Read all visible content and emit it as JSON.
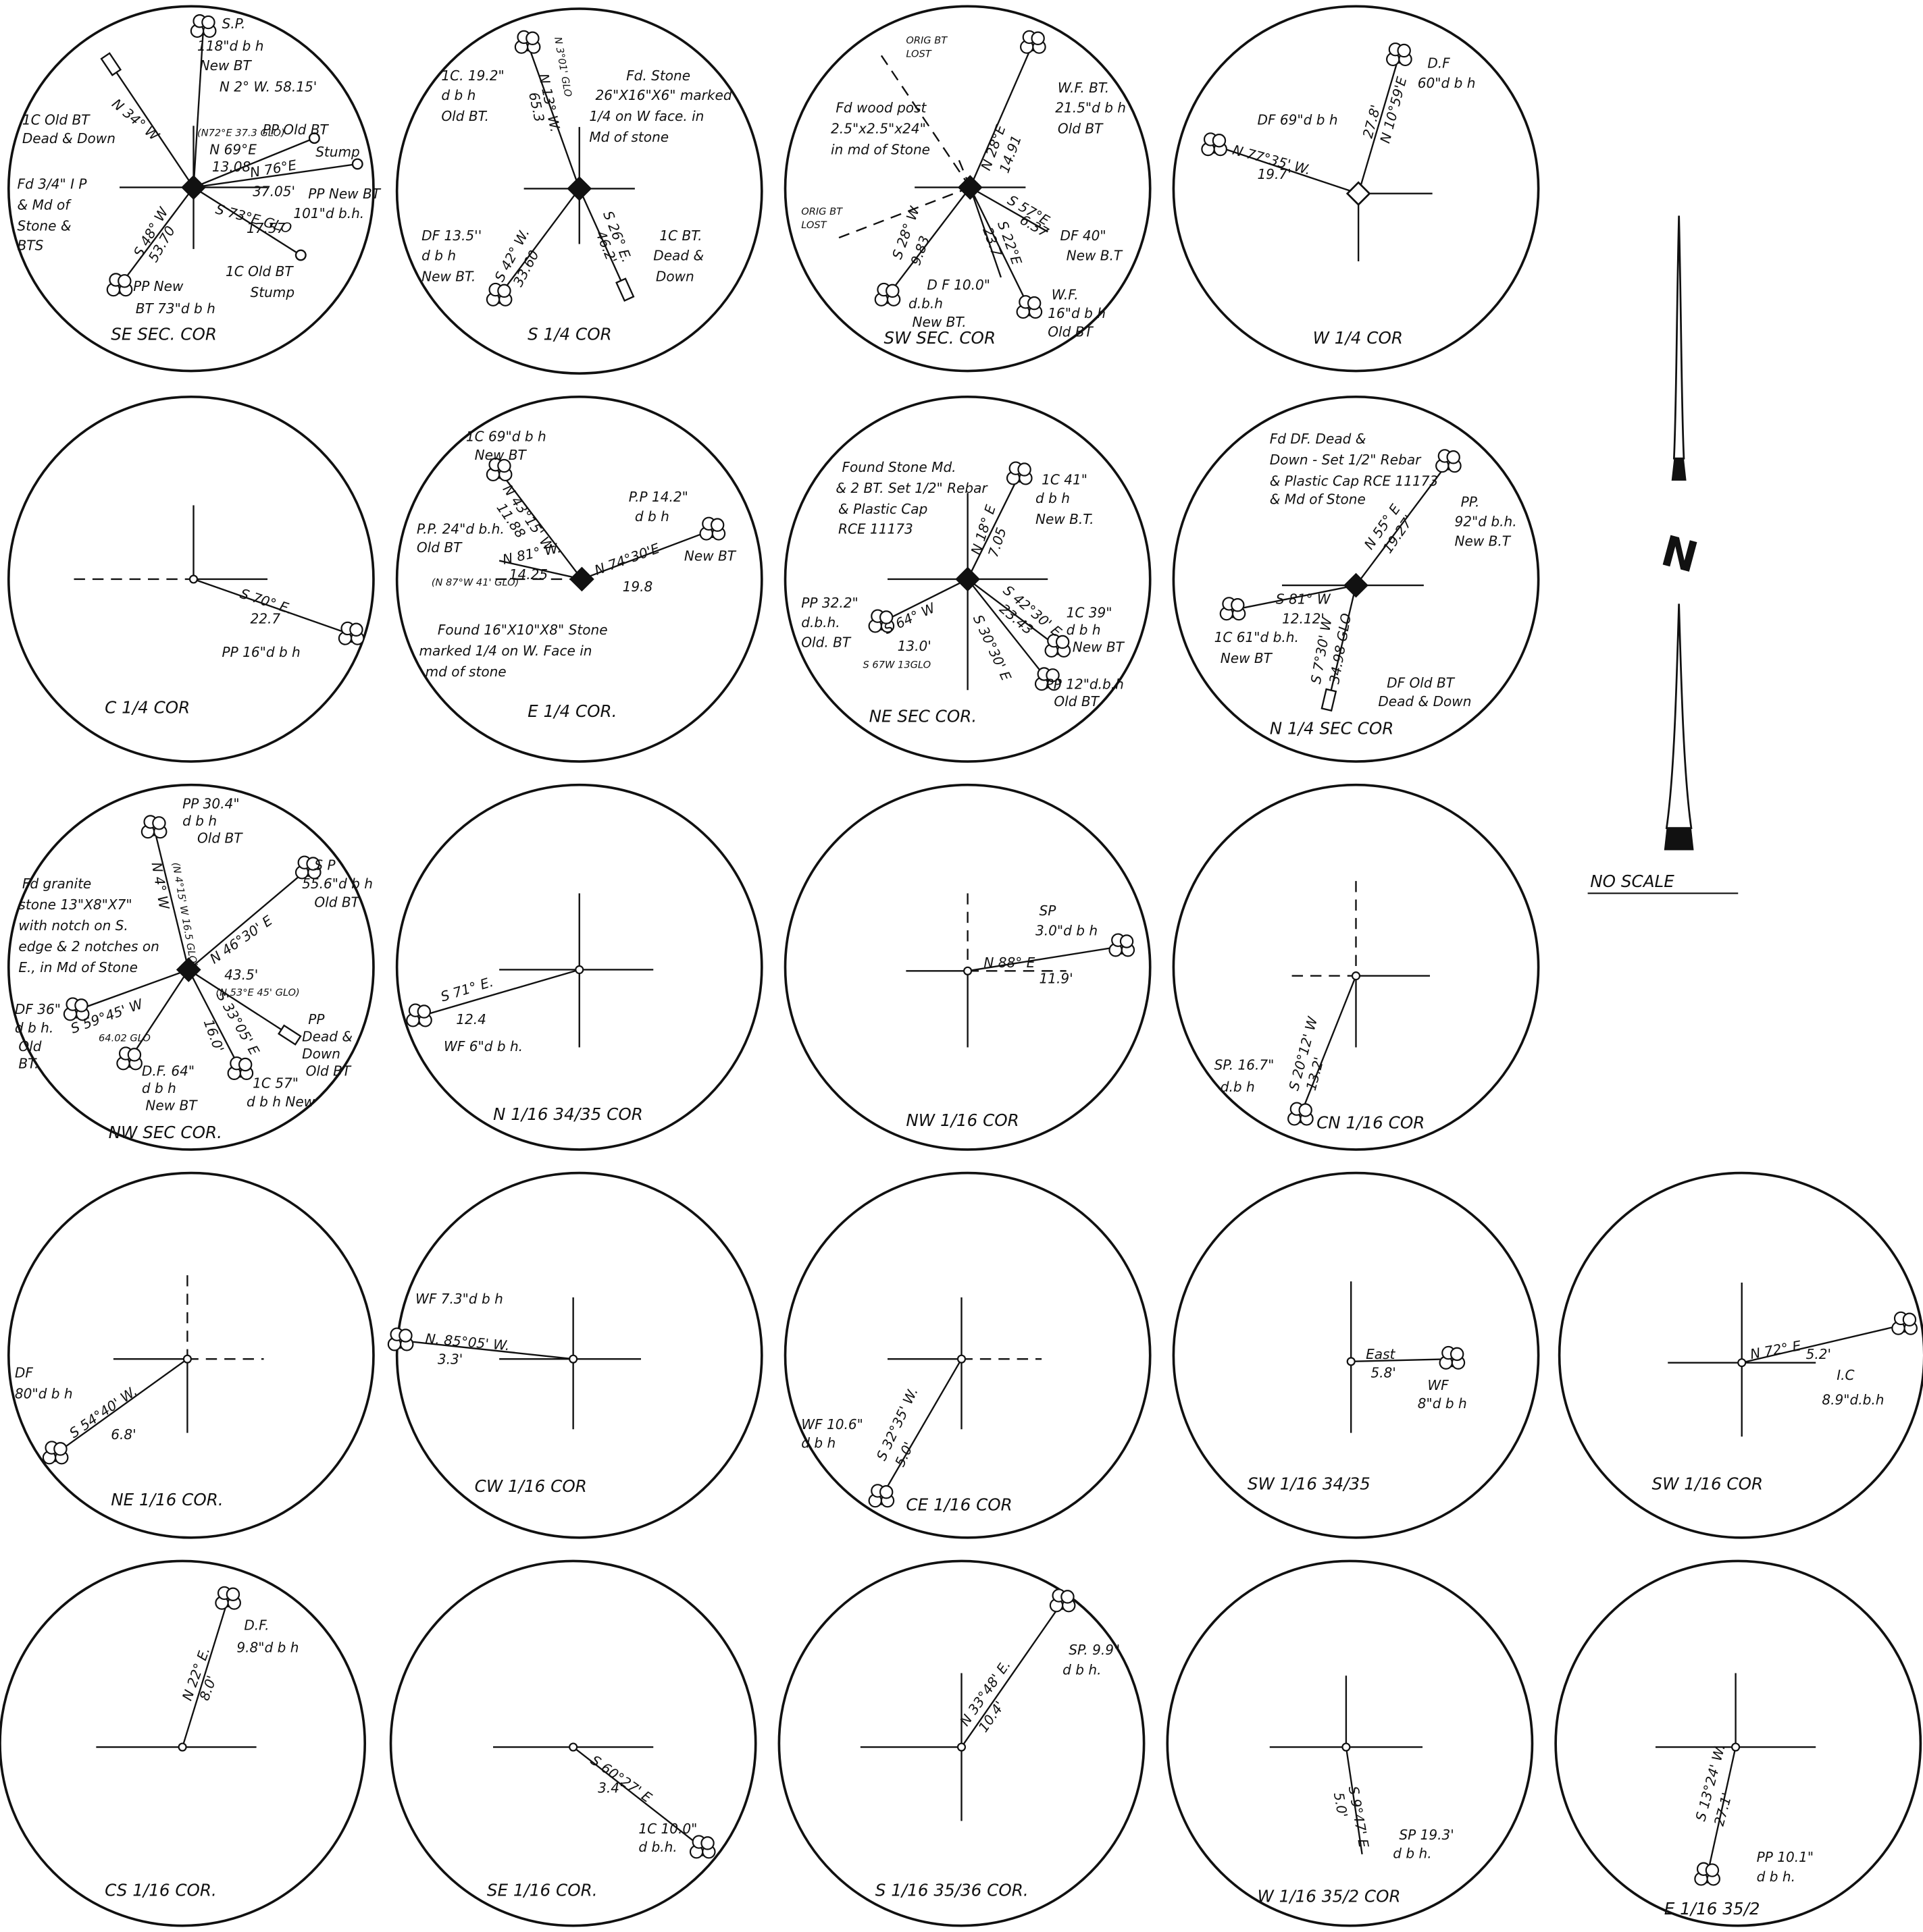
{
  "diagrams": [
    {
      "label": "SE SEC. COR",
      "notes": [
        "S.P.",
        "118\"d b h",
        "New BT",
        "N 2° W. 58.15'",
        "N 34° W",
        "1C Old BT",
        "Dead & Down",
        "(N72°E 37.3 GLO)",
        "N 69°E",
        "13.08",
        "PP Old BT",
        "Stump",
        "N 76°E",
        "37.05'",
        "PP New BT",
        "101\"d b.h.",
        "S 73°E GLO",
        "17.57",
        "1C Old BT",
        "Stump",
        "S 48° W",
        "53.70",
        "PP New",
        "BT 73\"d b h",
        "Fd 3/4\" I P",
        "& Md of",
        "Stone &",
        "BTS"
      ]
    },
    {
      "label": "S 1/4 COR",
      "notes": [
        "1C. 19.2\"",
        "d b h",
        "Old BT.",
        "N 3°01' GLO",
        "N 13° W.",
        "65.3",
        "Fd. Stone",
        "26\"X16\"X6\" marked",
        "1/4 on W face. in",
        "Md of stone",
        "DF 13.5''",
        "d b h",
        "New BT.",
        "S 42° W.",
        "33.60",
        "S 26° E.",
        "46.2'",
        "1C BT.",
        "Dead &",
        "Down"
      ]
    },
    {
      "label": "SW SEC. COR",
      "notes": [
        "ORIG BT",
        "LOST",
        "Fd wood post",
        "2.5\"x2.5\"x24\"",
        "in md of Stone",
        "N 28°E",
        "14.91",
        "W.F. BT.",
        "21.5\"d b h",
        "Old BT",
        "ORIG BT",
        "LOST",
        "S 57°E",
        "6.37",
        "DF 40\"",
        "New B.T",
        "S 28° W",
        "9.83",
        "S 22°E",
        "23.7",
        "D F 10.0\"",
        "d.b.h",
        "New BT.",
        "W.F.",
        "16\"d b h",
        "Old BT"
      ]
    },
    {
      "label": "W 1/4 COR",
      "notes": [
        "D.F",
        "60\"d b h",
        "DF 69\"d b h",
        "N 77°35' W.",
        "19.7'",
        "27.8'",
        "N 10°59'E"
      ]
    },
    {
      "label": "C 1/4 COR",
      "notes": [
        "S 70° E.",
        "22.7",
        "PP 16\"d b h"
      ]
    },
    {
      "label": "E 1/4 COR.",
      "notes": [
        "1C 69\"d b h",
        "New BT",
        "N 43°15' W",
        "11.88",
        "P.P. 24\"d b.h.",
        "Old BT",
        "N 81° W.",
        "14.25",
        "(N 87°W 41' GLO)",
        "P.P 14.2\"",
        "d b h",
        "N 74°30'E",
        "19.8",
        "New BT",
        "Found 16\"X10\"X8\" Stone",
        "marked 1/4 on W. Face in",
        "md of stone"
      ]
    },
    {
      "label": "NE SEC COR.",
      "notes": [
        "Found Stone Md.",
        "& 2 BT. Set 1/2\" Rebar",
        "& Plastic Cap",
        "RCE 11173",
        "1C 41\"",
        "d b h",
        "New B.T.",
        "N 18° E",
        "7.05",
        "PP 32.2\"",
        "d.b.h.",
        "Old. BT",
        "S 64° W",
        "13.0'",
        "S 67W 13GLO",
        "S 42°30' E",
        "23.43",
        "S 30°30' E",
        "1C 39\"",
        "d b h",
        "New BT",
        "PP 12\"d.b.h",
        "Old BT."
      ]
    },
    {
      "label": "N 1/4 SEC COR",
      "notes": [
        "Fd DF. Dead &",
        "Down - Set 1/2\" Rebar",
        "& Plastic Cap RCE 11173",
        "& Md of Stone",
        "PP.",
        "92\"d b.h.",
        "New B.T",
        "N 55° E",
        "19.27'",
        "S 81° W",
        "12.12'",
        "1C 61\"d b.h.",
        "New BT",
        "S 7°30' W",
        "34.98 GLO",
        "DF Old BT",
        "Dead & Down"
      ]
    },
    {
      "label": "NW SEC COR.",
      "notes": [
        "PP 30.4\"",
        "d b h",
        "Old BT",
        "N 4° W",
        "(N 4°15' W 16.5 GLO)",
        "Fd granite",
        "stone 13\"X8\"X7\"",
        "with notch on S.",
        "edge & 2 notches on",
        "E., in Md of Stone",
        "S P",
        "55.6\"d b h",
        "Old BT",
        "N 46°30' E",
        "43.5'",
        "(N 53°E 45' GLO)",
        "DF 36\"",
        "d b h.",
        "Old",
        "BT.",
        "S 59°45' W",
        "64.02 GLO",
        "S 33°05' E",
        "16.0'",
        "PP",
        "Dead &",
        "Down",
        "Old BT",
        "D.F. 64\"",
        "d b h",
        "New BT",
        "1C 57\"",
        "d b h New"
      ]
    },
    {
      "label": "N 1/16 34/35 COR",
      "notes": [
        "S 71° E.",
        "12.4",
        "WF 6\"d b h."
      ]
    },
    {
      "label": "NW 1/16 COR",
      "notes": [
        "SP",
        "3.0\"d b h",
        "N 88° E",
        "11.9'"
      ]
    },
    {
      "label": "CN 1/16 COR",
      "notes": [
        "SP. 16.7\"",
        "d.b h",
        "S 20°12' W",
        "13.2'"
      ]
    },
    {
      "label": "NE 1/16 COR.",
      "notes": [
        "DF",
        "80\"d b h",
        "S 54°40' W.",
        "6.8'"
      ]
    },
    {
      "label": "CW 1/16 COR",
      "notes": [
        "WF 7.3\"d b h",
        "N. 85°05' W.",
        "3.3'"
      ]
    },
    {
      "label": "CE 1/16 COR",
      "notes": [
        "WF 10.6\"",
        "d b h",
        "S 32°35' W.",
        "5.0'"
      ]
    },
    {
      "label": "SW 1/16 34/35",
      "notes": [
        "East",
        "5.8'",
        "WF",
        "8\"d b h"
      ]
    },
    {
      "label": "SW 1/16 COR",
      "notes": [
        "N 72° E",
        "5.2'",
        "I.C",
        "8.9\"d.b.h"
      ]
    },
    {
      "label": "CS 1/16 COR.",
      "notes": [
        "D.F.",
        "9.8\"d b h",
        "N 22° E.",
        "8.0'"
      ]
    },
    {
      "label": "SE 1/16 COR.",
      "notes": [
        "S 60°27' E",
        "3.4'",
        "1C 10.0\"",
        "d b.h."
      ]
    },
    {
      "label": "S 1/16 35/36 COR.",
      "notes": [
        "N 33°48' E.",
        "10.4'",
        "SP. 9.9\"",
        "d b h."
      ]
    },
    {
      "label": "W 1/16 35/2 COR",
      "notes": [
        "S 9°47' E",
        "5.0'",
        "SP 19.3'",
        "d b h."
      ]
    },
    {
      "label": "E 1/16 35/2",
      "notes": [
        "S 13°24' W.",
        "27.1'",
        "PP 10.1\"",
        "d b h."
      ]
    }
  ],
  "north_arrow": {
    "letter": "N",
    "note": "NO SCALE"
  }
}
